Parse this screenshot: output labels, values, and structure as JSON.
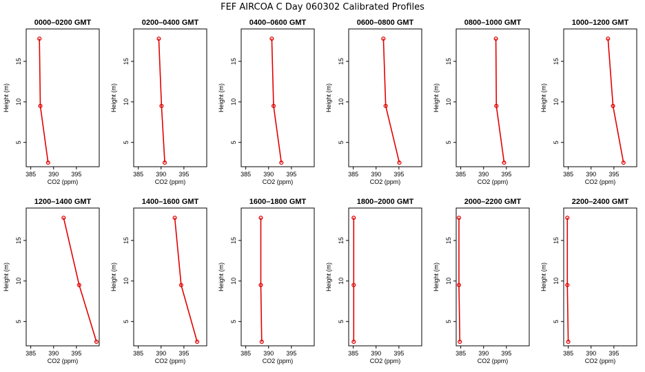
{
  "title": "FEF AIRCOA C  Day 060302  Calibrated Profiles",
  "chart_data": {
    "type": "line",
    "xlabel": "CO2 (ppm)",
    "ylabel": "Height (m)",
    "xlim": [
      384,
      400
    ],
    "ylim": [
      2,
      19
    ],
    "xticks": [
      385,
      390,
      395
    ],
    "yticks": [
      5,
      10,
      15
    ],
    "heights": [
      2.5,
      9.5,
      17.8
    ],
    "series_color": "#e00000",
    "panels": [
      {
        "title": "0000–0200 GMT",
        "co2": [
          388.8,
          387.1,
          386.9
        ]
      },
      {
        "title": "0200–0400 GMT",
        "co2": [
          390.8,
          390.1,
          389.5
        ]
      },
      {
        "title": "0400–0600 GMT",
        "co2": [
          392.8,
          391.1,
          390.7
        ]
      },
      {
        "title": "0600–0800 GMT",
        "co2": [
          395.1,
          392.1,
          391.6
        ]
      },
      {
        "title": "0800–1000 GMT",
        "co2": [
          394.5,
          392.8,
          392.7
        ]
      },
      {
        "title": "1000–1200 GMT",
        "co2": [
          397.1,
          394.8,
          393.7
        ]
      },
      {
        "title": "1200–1400 GMT",
        "co2": [
          399.4,
          395.6,
          392.2
        ]
      },
      {
        "title": "1400–1600 GMT",
        "co2": [
          397.9,
          394.4,
          393.0
        ]
      },
      {
        "title": "1600–1800 GMT",
        "co2": [
          388.5,
          388.3,
          388.3
        ]
      },
      {
        "title": "1800–2000 GMT",
        "co2": [
          385.1,
          385.1,
          385.1
        ]
      },
      {
        "title": "2000–2200 GMT",
        "co2": [
          384.8,
          384.6,
          384.6
        ]
      },
      {
        "title": "2200–2400 GMT",
        "co2": [
          385.0,
          384.8,
          384.8
        ]
      }
    ]
  }
}
